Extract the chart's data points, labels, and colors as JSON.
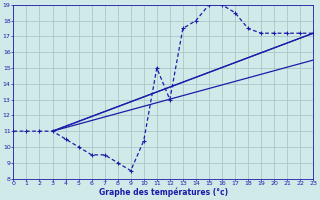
{
  "title": "Graphe des températures (°c)",
  "bg_color": "#d0eaea",
  "grid_color": "#a8c8c8",
  "line_color": "#1c1ca8",
  "xlim": [
    0,
    23
  ],
  "ylim": [
    8,
    19
  ],
  "xticks": [
    0,
    1,
    2,
    3,
    4,
    5,
    6,
    7,
    8,
    9,
    10,
    11,
    12,
    13,
    14,
    15,
    16,
    17,
    18,
    19,
    20,
    21,
    22,
    23
  ],
  "yticks": [
    8,
    9,
    10,
    11,
    12,
    13,
    14,
    15,
    16,
    17,
    18,
    19
  ],
  "curve_x": [
    0,
    1,
    2,
    3,
    4,
    5,
    6,
    7,
    8,
    9,
    10,
    11,
    12,
    13,
    14,
    15,
    16,
    17,
    18,
    19,
    20,
    21,
    22,
    23
  ],
  "curve_y": [
    11,
    11,
    11,
    11,
    10.5,
    10,
    9.5,
    9.5,
    9,
    8.5,
    10.4,
    15.0,
    13.0,
    17.5,
    18.0,
    19.0,
    19.0,
    18.5,
    17.5,
    17.2,
    17.2,
    17.2,
    17.2,
    17.2
  ],
  "straight_lines": [
    {
      "x": [
        3,
        23
      ],
      "y": [
        11,
        17.2
      ]
    },
    {
      "x": [
        3,
        23
      ],
      "y": [
        11,
        15.5
      ]
    },
    {
      "x": [
        3,
        23
      ],
      "y": [
        11,
        17.2
      ]
    }
  ]
}
